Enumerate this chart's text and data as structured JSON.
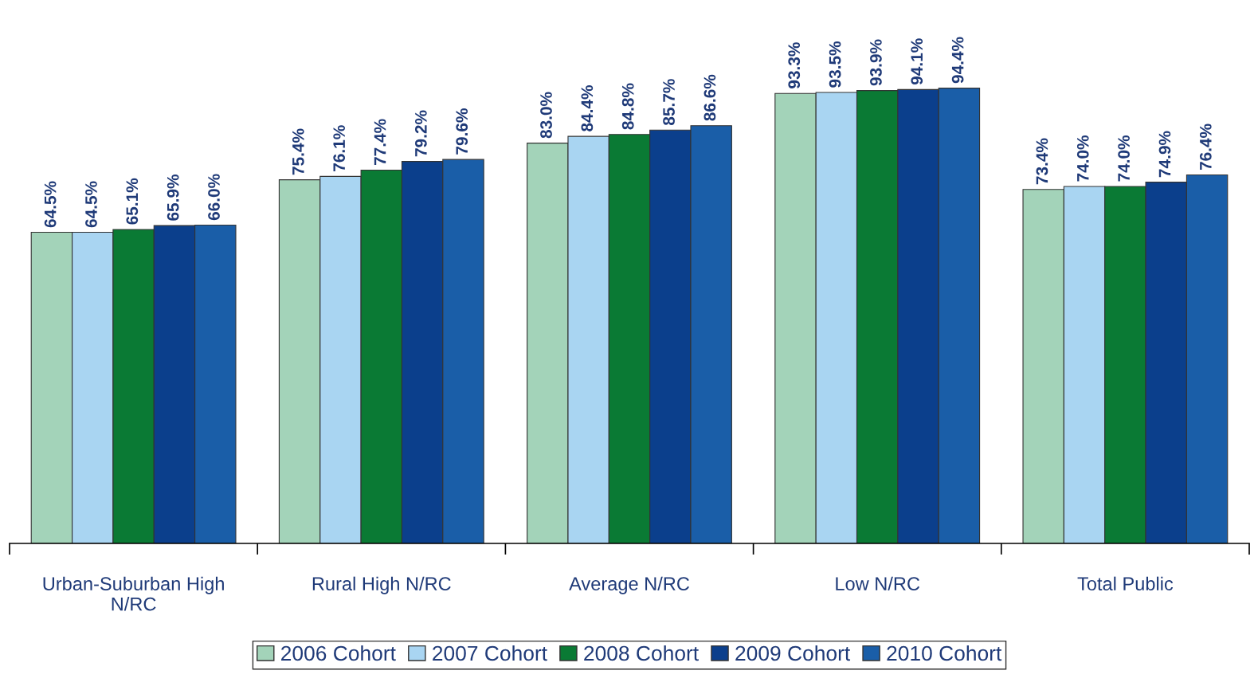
{
  "chart_data": {
    "type": "bar",
    "categories": [
      "Urban-Suburban High\nN/RC",
      "Rural High N/RC",
      "Average N/RC",
      "Low N/RC",
      "Total Public"
    ],
    "series": [
      {
        "name": "2006 Cohort",
        "color": "#a3d3b9",
        "values": [
          64.5,
          75.4,
          83.0,
          93.3,
          73.4
        ],
        "value_labels": [
          "64.5%",
          "75.4%",
          "83.0%",
          "93.3%",
          "73.4%"
        ]
      },
      {
        "name": "2007 Cohort",
        "color": "#a9d5f2",
        "values": [
          64.5,
          76.1,
          84.4,
          93.5,
          74.0
        ],
        "value_labels": [
          "64.5%",
          "76.1%",
          "84.4%",
          "93.5%",
          "74.0%"
        ]
      },
      {
        "name": "2008 Cohort",
        "color": "#0a7a34",
        "values": [
          65.1,
          77.4,
          84.8,
          93.9,
          74.0
        ],
        "value_labels": [
          "65.1%",
          "77.4%",
          "84.8%",
          "93.9%",
          "74.0%"
        ]
      },
      {
        "name": "2009 Cohort",
        "color": "#0b3f8c",
        "values": [
          65.9,
          79.2,
          85.7,
          94.1,
          74.9
        ],
        "value_labels": [
          "65.9%",
          "79.2%",
          "85.7%",
          "94.1%",
          "74.9%"
        ]
      },
      {
        "name": "2010 Cohort",
        "color": "#1a5ea8",
        "values": [
          66.0,
          79.6,
          86.6,
          94.4,
          76.4
        ],
        "value_labels": [
          "66.0%",
          "79.6%",
          "86.6%",
          "94.4%",
          "76.4%"
        ]
      }
    ],
    "tick_labels": "x",
    "grid": false,
    "legend": "bottom"
  }
}
